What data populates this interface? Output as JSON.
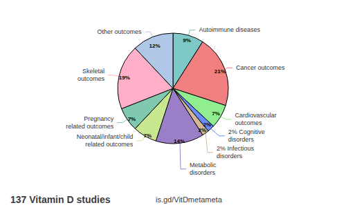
{
  "chart_data": {
    "type": "pie",
    "title": "137 Vitamin D studies",
    "annotations": [
      "is.gd/VitDmetameta"
    ],
    "categories": [
      "Autoimmune diseases",
      "Cancer outcomes",
      "Cardiovascular\noutcomes",
      "2% Cognitive\ndisorders",
      "2% Infectious\ndisorders",
      "Metabolic\ndisorders",
      "Neonatal/infant/child\nrelated outcomes",
      "Pregnancy\nrelated outcomes",
      "Skeletal\noutcomes",
      "Other outcomes"
    ],
    "values": [
      9,
      21,
      7,
      2,
      2,
      14,
      7,
      7,
      19,
      12
    ],
    "value_labels": [
      "9%",
      "21%",
      "7%",
      "2%",
      "2%",
      "14%",
      "7%",
      "7%",
      "19%",
      "12%"
    ],
    "colors": [
      "#7EC8C8",
      "#F08080",
      "#90EE90",
      "#6B8CFF",
      "#D4B896",
      "#9B7EC8",
      "#C8E890",
      "#80C8B0",
      "#FFB0C8",
      "#B0C8E8"
    ],
    "data_labels": true
  }
}
